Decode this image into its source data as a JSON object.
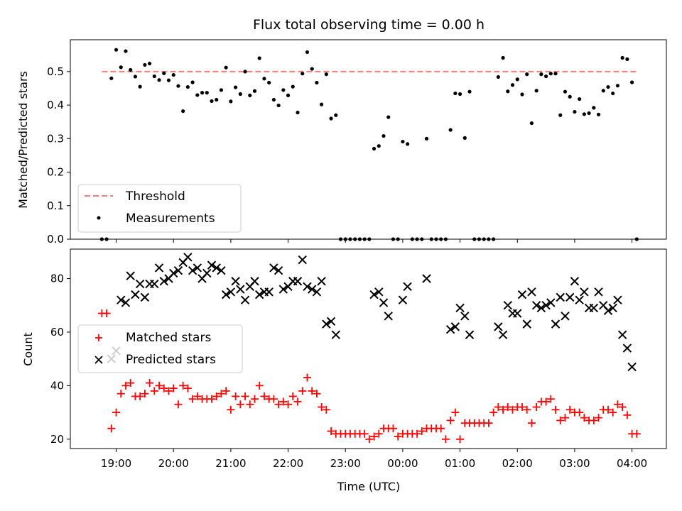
{
  "chart_data": [
    {
      "type": "scatter",
      "title": "Flux total observing time = 0.00 h",
      "xlabel": "",
      "ylabel": "Matched/Predicted stars",
      "ylim": [
        0,
        0.595
      ],
      "yticks": [
        "0.0",
        "0.1",
        "0.2",
        "0.3",
        "0.4",
        "0.5"
      ],
      "xlim_hours": [
        18.2,
        28.6
      ],
      "legend": {
        "placement": "bottom-left",
        "entries": [
          "Threshold",
          "Measurements"
        ]
      },
      "threshold": {
        "name": "Threshold",
        "value": 0.5,
        "x_start": "18:45",
        "x_end": "04:05",
        "color": "#f08080"
      },
      "series": [
        {
          "name": "Measurements",
          "color": "#000000",
          "x": [
            "18:45",
            "18:50",
            "18:55",
            "19:00",
            "19:05",
            "19:10",
            "19:15",
            "19:20",
            "19:25",
            "19:30",
            "19:35",
            "19:40",
            "19:45",
            "19:50",
            "19:55",
            "20:00",
            "20:05",
            "20:10",
            "20:15",
            "20:20",
            "20:25",
            "20:30",
            "20:35",
            "20:40",
            "20:45",
            "20:50",
            "20:55",
            "21:00",
            "21:05",
            "21:10",
            "21:15",
            "21:20",
            "21:25",
            "21:30",
            "21:35",
            "21:40",
            "21:45",
            "21:50",
            "21:55",
            "22:00",
            "22:05",
            "22:10",
            "22:15",
            "22:20",
            "22:25",
            "22:30",
            "22:35",
            "22:40",
            "22:45",
            "22:50",
            "22:55",
            "23:00",
            "23:05",
            "23:10",
            "23:15",
            "23:20",
            "23:25",
            "23:30",
            "23:35",
            "23:40",
            "23:45",
            "23:50",
            "23:55",
            "00:00",
            "00:05",
            "00:10",
            "00:15",
            "00:20",
            "00:25",
            "00:30",
            "00:35",
            "00:40",
            "00:45",
            "00:50",
            "00:55",
            "01:00",
            "01:05",
            "01:10",
            "01:15",
            "01:20",
            "01:25",
            "01:30",
            "01:35",
            "01:40",
            "01:45",
            "01:50",
            "01:55",
            "02:00",
            "02:05",
            "02:10",
            "02:15",
            "02:20",
            "02:25",
            "02:30",
            "02:35",
            "02:40",
            "02:45",
            "02:50",
            "02:55",
            "03:00",
            "03:05",
            "03:10",
            "03:15",
            "03:20",
            "03:25",
            "03:30",
            "03:35",
            "03:40",
            "03:45",
            "03:50",
            "03:55",
            "04:00",
            "04:05"
          ],
          "y": [
            0.0,
            0.0,
            0.48,
            0.565,
            0.513,
            0.561,
            0.505,
            0.485,
            0.455,
            0.52,
            0.524,
            0.486,
            0.475,
            0.495,
            0.474,
            0.49,
            0.457,
            0.382,
            0.454,
            0.468,
            0.43,
            0.437,
            0.437,
            0.412,
            0.416,
            0.445,
            0.512,
            0.411,
            0.453,
            0.433,
            0.5,
            0.429,
            0.442,
            0.54,
            0.479,
            0.467,
            0.416,
            0.399,
            0.445,
            0.429,
            0.455,
            0.378,
            0.494,
            0.558,
            0.508,
            0.467,
            0.402,
            0.492,
            0.36,
            0.37,
            0.0,
            0.0,
            0.0,
            0.0,
            0.0,
            0.0,
            0.0,
            0.27,
            0.278,
            0.308,
            0.364,
            0.0,
            0.0,
            0.291,
            0.284,
            0.0,
            0.0,
            0.0,
            0.3,
            0.0,
            0.0,
            0.0,
            0.0,
            0.326,
            0.435,
            0.433,
            0.302,
            0.44,
            0.0,
            0.0,
            0.0,
            0.0,
            0.0,
            0.484,
            0.541,
            0.441,
            0.46,
            0.477,
            0.432,
            0.492,
            0.346,
            0.443,
            0.492,
            0.486,
            0.494,
            0.494,
            0.37,
            0.44,
            0.425,
            0.38,
            0.418,
            0.373,
            0.376,
            0.392,
            0.372,
            0.443,
            0.454,
            0.435,
            0.458,
            0.541,
            0.537,
            0.468,
            0.0
          ]
        }
      ]
    },
    {
      "type": "scatter",
      "title": "",
      "xlabel": "Time (UTC)",
      "ylabel": "Count",
      "ylim": [
        16.5,
        91
      ],
      "yticks": [
        "20",
        "40",
        "60",
        "80"
      ],
      "xlim_hours": [
        18.2,
        28.6
      ],
      "xticks": [
        "19:00",
        "20:00",
        "21:00",
        "22:00",
        "23:00",
        "00:00",
        "01:00",
        "02:00",
        "03:00",
        "04:00"
      ],
      "legend": {
        "placement": "center-left",
        "entries": [
          "Matched stars",
          "Predicted stars"
        ]
      },
      "series": [
        {
          "name": "Matched stars",
          "marker": "plus",
          "color": "#ff0000",
          "x": [
            "18:45",
            "18:50",
            "18:55",
            "19:00",
            "19:05",
            "19:10",
            "19:15",
            "19:20",
            "19:25",
            "19:30",
            "19:35",
            "19:40",
            "19:45",
            "19:50",
            "19:55",
            "20:00",
            "20:05",
            "20:10",
            "20:15",
            "20:20",
            "20:25",
            "20:30",
            "20:35",
            "20:40",
            "20:45",
            "20:50",
            "20:55",
            "21:00",
            "21:05",
            "21:10",
            "21:15",
            "21:20",
            "21:25",
            "21:30",
            "21:35",
            "21:40",
            "21:45",
            "21:50",
            "21:55",
            "22:00",
            "22:05",
            "22:10",
            "22:15",
            "22:20",
            "22:25",
            "22:30",
            "22:35",
            "22:40",
            "22:45",
            "22:50",
            "22:55",
            "23:00",
            "23:05",
            "23:10",
            "23:15",
            "23:20",
            "23:25",
            "23:30",
            "23:35",
            "23:40",
            "23:45",
            "23:50",
            "23:55",
            "00:00",
            "00:05",
            "00:10",
            "00:15",
            "00:20",
            "00:25",
            "00:30",
            "00:35",
            "00:40",
            "00:45",
            "00:50",
            "00:55",
            "01:00",
            "01:05",
            "01:10",
            "01:15",
            "01:20",
            "01:25",
            "01:30",
            "01:35",
            "01:40",
            "01:45",
            "01:50",
            "01:55",
            "02:00",
            "02:05",
            "02:10",
            "02:15",
            "02:20",
            "02:25",
            "02:30",
            "02:35",
            "02:40",
            "02:45",
            "02:50",
            "02:55",
            "03:00",
            "03:05",
            "03:10",
            "03:15",
            "03:20",
            "03:25",
            "03:30",
            "03:35",
            "03:40",
            "03:45",
            "03:50",
            "03:55",
            "04:00",
            "04:05"
          ],
          "y": [
            67,
            67,
            24,
            30,
            37,
            40,
            41,
            36,
            36,
            37,
            41,
            38,
            40,
            39,
            38,
            39,
            33,
            40,
            39,
            35,
            36,
            35,
            35,
            35,
            36,
            37,
            38,
            31,
            36,
            33,
            36,
            33,
            35,
            40,
            36,
            35,
            35,
            33,
            34,
            33,
            36,
            34,
            38,
            43,
            38,
            37,
            32,
            31,
            23,
            22,
            22,
            22,
            22,
            22,
            22,
            22,
            20,
            21,
            22,
            24,
            24,
            24,
            21,
            22,
            22,
            22,
            22,
            23,
            24,
            24,
            24,
            24,
            20,
            27,
            30,
            20,
            26,
            26,
            26,
            26,
            26,
            26,
            30,
            32,
            31,
            32,
            31,
            32,
            32,
            31,
            26,
            32,
            34,
            34,
            35,
            31,
            27,
            28,
            31,
            30,
            30,
            28,
            27,
            27,
            28,
            31,
            31,
            30,
            33,
            32,
            29,
            22,
            22
          ]
        },
        {
          "name": "Predicted stars",
          "marker": "x",
          "color": "#000000",
          "x": [
            "18:45",
            "18:50",
            "18:55",
            "19:00",
            "19:05",
            "19:10",
            "19:15",
            "19:20",
            "19:25",
            "19:30",
            "19:35",
            "19:40",
            "19:45",
            "19:50",
            "19:55",
            "20:00",
            "20:05",
            "20:10",
            "20:15",
            "20:20",
            "20:25",
            "20:30",
            "20:35",
            "20:40",
            "20:45",
            "20:50",
            "20:55",
            "21:00",
            "21:05",
            "21:10",
            "21:15",
            "21:20",
            "21:25",
            "21:30",
            "21:35",
            "21:40",
            "21:45",
            "21:50",
            "21:55",
            "22:00",
            "22:05",
            "22:10",
            "22:15",
            "22:20",
            "22:25",
            "22:30",
            "22:35",
            "22:40",
            "22:45",
            "22:50",
            "22:55",
            "23:00",
            "23:05",
            "23:10",
            "23:15",
            "23:20",
            "23:25",
            "23:30",
            "23:35",
            "23:40",
            "23:45",
            "23:50",
            "23:55",
            "00:00",
            "00:05",
            "00:10",
            "00:15",
            "00:20",
            "00:25",
            "00:30",
            "00:35",
            "00:40",
            "00:45",
            "00:50",
            "00:55",
            "01:00",
            "01:05",
            "01:10",
            "01:15",
            "01:20",
            "01:25",
            "01:30",
            "01:35",
            "01:40",
            "01:45",
            "01:50",
            "01:55",
            "02:00",
            "02:05",
            "02:10",
            "02:15",
            "02:20",
            "02:25",
            "02:30",
            "02:35",
            "02:40",
            "02:45",
            "02:50",
            "02:55",
            "03:00",
            "03:05",
            "03:10",
            "03:15",
            "03:20",
            "03:25",
            "03:30",
            "03:35",
            "03:40",
            "03:45",
            "03:50",
            "03:55",
            "04:00",
            "04:05"
          ],
          "y": [
            null,
            null,
            50,
            53,
            72,
            71,
            81,
            74,
            78,
            73,
            78,
            78,
            84,
            79,
            80,
            82,
            83,
            86,
            88,
            83,
            84,
            80,
            82,
            85,
            84,
            83,
            74,
            75,
            79,
            76,
            72,
            77,
            79,
            74,
            75,
            75,
            84,
            83,
            76,
            77,
            79,
            79,
            87,
            77,
            76,
            75,
            79,
            63,
            64,
            59,
            null,
            null,
            null,
            null,
            null,
            null,
            null,
            74,
            75,
            71,
            66,
            null,
            null,
            72,
            77,
            null,
            null,
            null,
            80,
            null,
            null,
            null,
            null,
            61,
            62,
            69,
            66,
            59,
            null,
            null,
            null,
            null,
            null,
            62,
            59,
            70,
            67,
            67,
            74,
            63,
            75,
            70,
            69,
            70,
            71,
            63,
            73,
            66,
            73,
            79,
            72,
            75,
            69,
            69,
            75,
            70,
            68,
            69,
            72,
            59,
            54,
            47,
            null
          ]
        }
      ]
    }
  ]
}
